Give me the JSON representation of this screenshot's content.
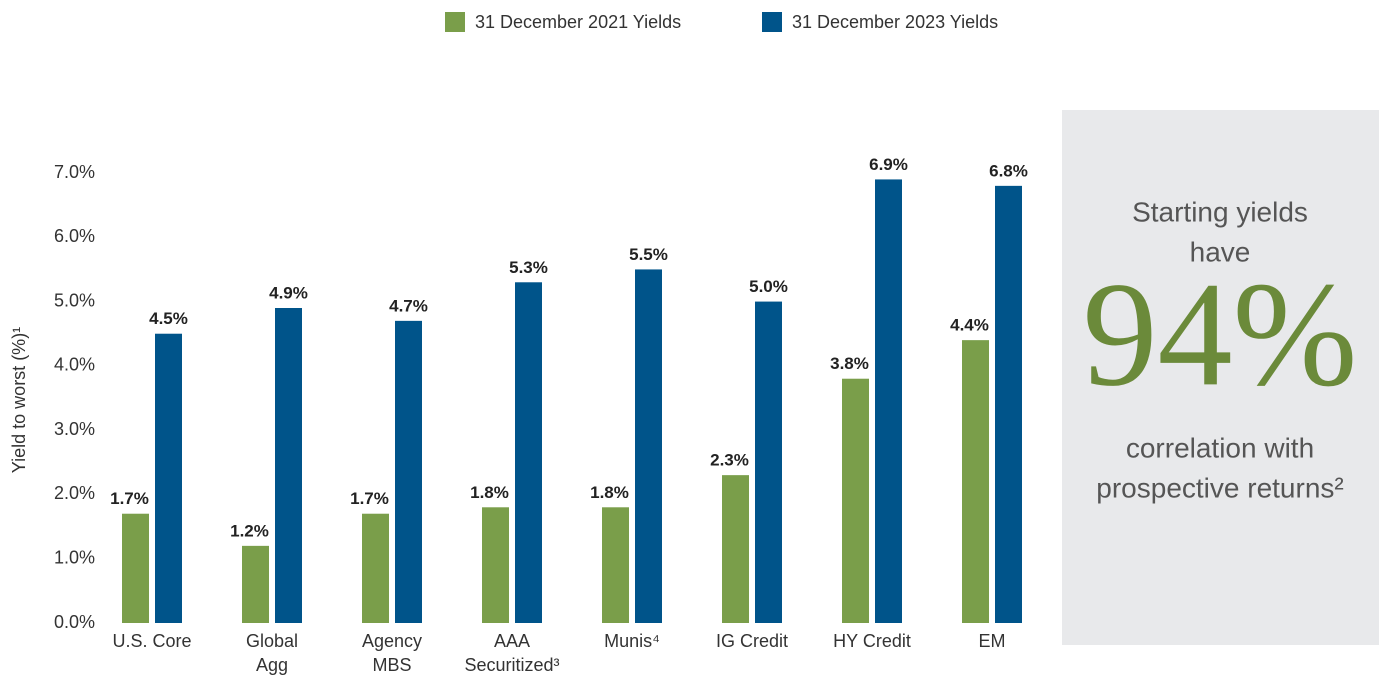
{
  "chart_data": {
    "type": "bar",
    "y_label": "Yield to worst (%)¹",
    "categories": [
      [
        "U.S. Core"
      ],
      [
        "Global",
        "Agg"
      ],
      [
        "Agency",
        "MBS"
      ],
      [
        "AAA",
        "Securitized³"
      ],
      [
        "Munis⁴"
      ],
      [
        "IG Credit"
      ],
      [
        "HY Credit"
      ],
      [
        "EM"
      ]
    ],
    "series": [
      {
        "name": "31 December 2021 Yields",
        "color": "#7a9e4a",
        "values": [
          1.7,
          1.2,
          1.7,
          1.8,
          1.8,
          2.3,
          3.8,
          4.4
        ],
        "value_labels": [
          "1.7%",
          "1.2%",
          "1.7%",
          "1.8%",
          "1.8%",
          "2.3%",
          "3.8%",
          "4.4%"
        ]
      },
      {
        "name": "31 December 2023 Yields",
        "color": "#00548a",
        "values": [
          4.5,
          4.9,
          4.7,
          5.3,
          5.5,
          5.0,
          6.9,
          6.8
        ],
        "value_labels": [
          "4.5%",
          "4.9%",
          "4.7%",
          "5.3%",
          "5.5%",
          "5.0%",
          "6.9%",
          "6.8%"
        ]
      }
    ],
    "ylim": [
      0,
      7
    ],
    "yticks": [
      {
        "value": 0,
        "label": "0.0%"
      },
      {
        "value": 1,
        "label": "1.0%"
      },
      {
        "value": 2,
        "label": "2.0%"
      },
      {
        "value": 3,
        "label": "3.0%"
      },
      {
        "value": 4,
        "label": "4.0%"
      },
      {
        "value": 5,
        "label": "5.0%"
      },
      {
        "value": 6,
        "label": "6.0%"
      },
      {
        "value": 7,
        "label": "7.0%"
      }
    ],
    "grid": false,
    "legend": "top",
    "callout": {
      "lead": [
        "Starting yields",
        "have"
      ],
      "figure": "94%",
      "tail": [
        "correlation with",
        "prospective returns²"
      ]
    }
  }
}
